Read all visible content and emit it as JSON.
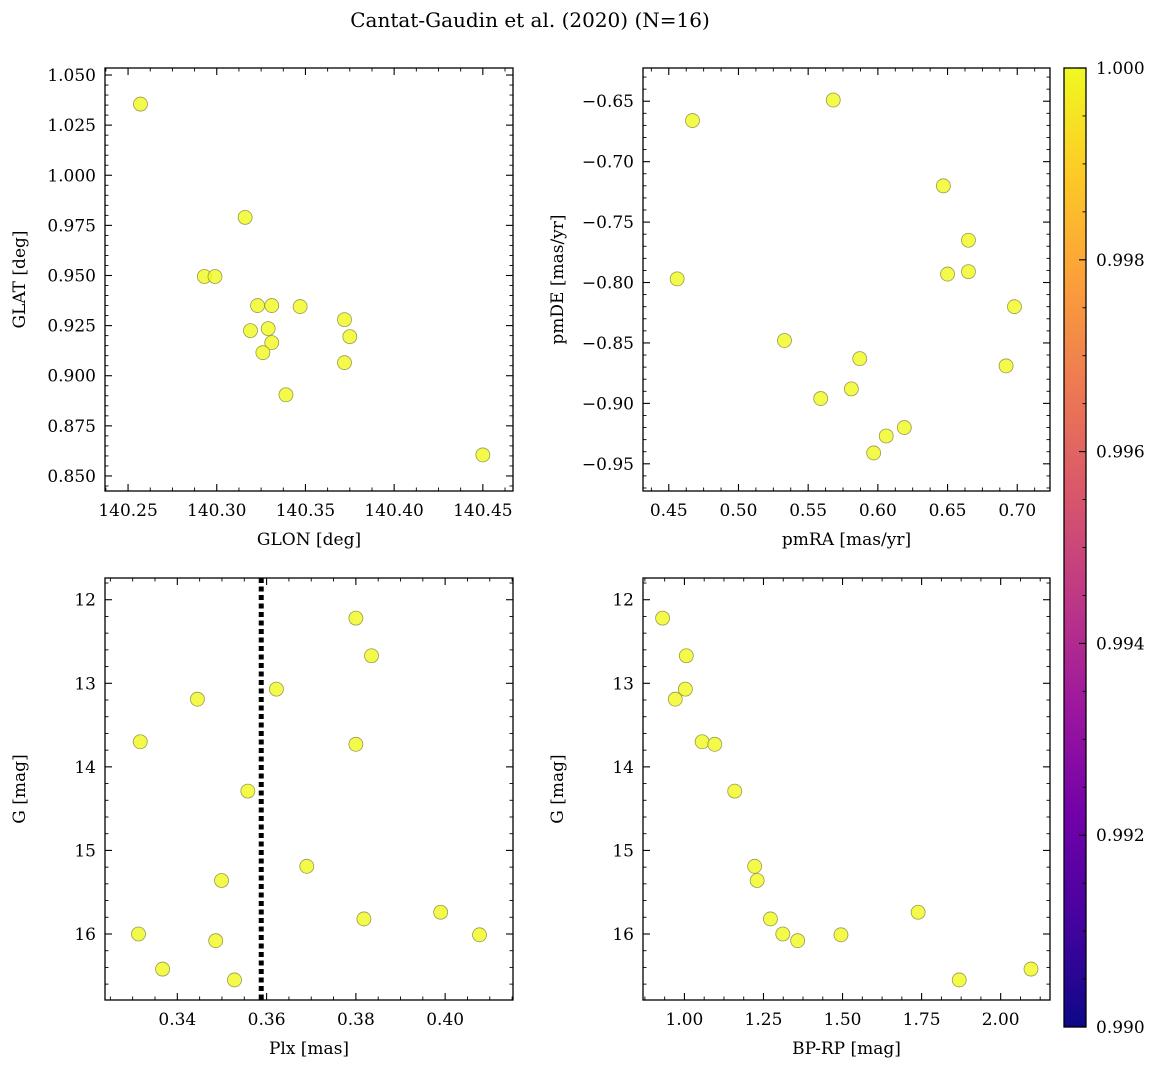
{
  "figure": {
    "title": "Cantat-Gaudin et al. (2020) (N=16)",
    "point_color": "#f0f921"
  },
  "chart_data": [
    {
      "type": "scatter",
      "panel": "top-left",
      "xlabel": "GLON [deg]",
      "ylabel": "GLAT [deg]",
      "xlim": [
        140.237,
        140.467
      ],
      "ylim": [
        0.8425,
        1.0535
      ],
      "xticks": [
        140.25,
        140.3,
        140.35,
        140.4,
        140.45
      ],
      "xtick_labels": [
        "140.25",
        "140.30",
        "140.35",
        "140.40",
        "140.45"
      ],
      "yticks": [
        0.85,
        0.875,
        0.9,
        0.925,
        0.95,
        0.975,
        1.0,
        1.025,
        1.05
      ],
      "ytick_labels": [
        "0.850",
        "0.875",
        "0.900",
        "0.925",
        "0.950",
        "0.975",
        "1.000",
        "1.025",
        "1.050"
      ],
      "grid": false,
      "x": [
        140.257,
        140.293,
        140.299,
        140.316,
        140.319,
        140.323,
        140.329,
        140.331,
        140.347,
        140.372,
        140.375,
        140.331,
        140.326,
        140.372,
        140.339,
        140.45
      ],
      "y": [
        1.0355,
        0.9495,
        0.9495,
        0.979,
        0.9225,
        0.935,
        0.9235,
        0.935,
        0.9345,
        0.928,
        0.9195,
        0.9165,
        0.9115,
        0.9065,
        0.8905,
        0.8605
      ]
    },
    {
      "type": "scatter",
      "panel": "top-right",
      "xlabel": "pmRA [mas/yr]",
      "ylabel": "pmDE [mas/yr]",
      "xlim": [
        0.4315,
        0.7235
      ],
      "ylim": [
        -0.9725,
        -0.6225
      ],
      "xticks": [
        0.45,
        0.5,
        0.55,
        0.6,
        0.65,
        0.7
      ],
      "xtick_labels": [
        "0.45",
        "0.50",
        "0.55",
        "0.60",
        "0.65",
        "0.70"
      ],
      "yticks": [
        -0.95,
        -0.9,
        -0.85,
        -0.8,
        -0.75,
        -0.7,
        -0.65
      ],
      "ytick_labels": [
        "−0.95",
        "−0.90",
        "−0.85",
        "−0.80",
        "−0.75",
        "−0.70",
        "−0.65"
      ],
      "grid": false,
      "x": [
        0.568,
        0.467,
        0.456,
        0.647,
        0.665,
        0.65,
        0.665,
        0.698,
        0.533,
        0.587,
        0.692,
        0.581,
        0.559,
        0.619,
        0.606,
        0.597
      ],
      "y": [
        -0.649,
        -0.666,
        -0.797,
        -0.72,
        -0.765,
        -0.793,
        -0.791,
        -0.82,
        -0.848,
        -0.863,
        -0.869,
        -0.888,
        -0.896,
        -0.92,
        -0.927,
        -0.941
      ]
    },
    {
      "type": "scatter",
      "panel": "bottom-left",
      "xlabel": "Plx [mas]",
      "ylabel": "G [mag]",
      "xlim": [
        0.3238,
        0.4152
      ],
      "ylim": [
        16.79,
        11.74
      ],
      "y_inverted": true,
      "xticks": [
        0.34,
        0.36,
        0.38,
        0.4
      ],
      "xtick_labels": [
        "0.34",
        "0.36",
        "0.38",
        "0.40"
      ],
      "yticks": [
        12,
        13,
        14,
        15,
        16
      ],
      "ytick_labels": [
        "12",
        "13",
        "14",
        "15",
        "16"
      ],
      "grid": false,
      "x": [
        0.38,
        0.3835,
        0.3622,
        0.3445,
        0.3317,
        0.38,
        0.3558,
        0.369,
        0.3499,
        0.399,
        0.3818,
        0.3313,
        0.4077,
        0.3486,
        0.3367,
        0.3528
      ],
      "y": [
        12.22,
        12.67,
        13.07,
        13.19,
        13.7,
        13.73,
        14.29,
        15.19,
        15.36,
        15.74,
        15.82,
        16.0,
        16.01,
        16.08,
        16.42,
        16.55
      ],
      "vline": {
        "x": 0.3588,
        "style": "dotted",
        "color": "#000000"
      }
    },
    {
      "type": "scatter",
      "panel": "bottom-right",
      "xlabel": "BP-RP [mag]",
      "ylabel": "G [mag]",
      "xlim": [
        0.869,
        2.156
      ],
      "ylim": [
        16.79,
        11.74
      ],
      "y_inverted": true,
      "xticks": [
        1.0,
        1.25,
        1.5,
        1.75,
        2.0
      ],
      "xtick_labels": [
        "1.00",
        "1.25",
        "1.50",
        "1.75",
        "2.00"
      ],
      "yticks": [
        12,
        13,
        14,
        15,
        16
      ],
      "ytick_labels": [
        "12",
        "13",
        "14",
        "15",
        "16"
      ],
      "grid": false,
      "x": [
        0.931,
        1.006,
        1.003,
        0.971,
        1.056,
        1.096,
        1.159,
        1.222,
        1.23,
        1.739,
        1.272,
        1.311,
        1.495,
        1.358,
        2.096,
        1.869
      ],
      "y": [
        12.22,
        12.67,
        13.07,
        13.19,
        13.7,
        13.73,
        14.29,
        15.19,
        15.36,
        15.74,
        15.82,
        16.0,
        16.01,
        16.08,
        16.42,
        16.55
      ]
    }
  ],
  "colorbar": {
    "range": [
      0.99,
      1.0
    ],
    "ticks": [
      0.99,
      0.992,
      0.994,
      0.996,
      0.998,
      1.0
    ],
    "tick_labels": [
      "0.990",
      "0.992",
      "0.994",
      "0.996",
      "0.998",
      "1.000"
    ],
    "colormap": "plasma",
    "stops": [
      "#0d0887",
      "#46039f",
      "#7201a8",
      "#9c179e",
      "#bd3786",
      "#d8576b",
      "#ed7953",
      "#fb9f3a",
      "#fdca26",
      "#f0f921"
    ]
  }
}
